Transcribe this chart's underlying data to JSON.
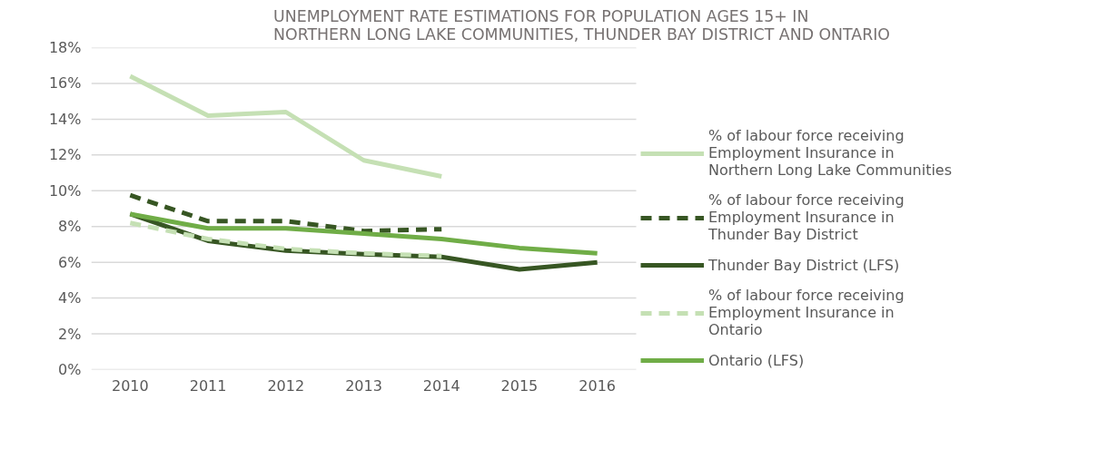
{
  "chart_data": {
    "type": "line",
    "title": "UNEMPLOYMENT RATE ESTIMATIONS FOR POPULATION AGES 15+ IN\nNORTHERN LONG LAKE COMMUNITIES, THUNDER BAY DISTRICT AND ONTARIO",
    "categories": [
      "2010",
      "2011",
      "2012",
      "2013",
      "2014",
      "2015",
      "2016"
    ],
    "series": [
      {
        "name": "% of labour force receiving Employment Insurance in Northern Long Lake Communities",
        "color": "#c5e0b4",
        "line_style": "solid",
        "values": [
          16.4,
          14.2,
          14.4,
          11.7,
          10.8,
          null,
          null
        ]
      },
      {
        "name": "% of labour force receiving Employment Insurance in Thunder Bay District",
        "color": "#375623",
        "line_style": "dashed",
        "values": [
          9.75,
          8.3,
          8.3,
          7.75,
          7.85,
          null,
          null
        ]
      },
      {
        "name": "Thunder Bay District (LFS)",
        "color": "#375623",
        "line_style": "solid",
        "values": [
          8.7,
          7.2,
          6.65,
          6.45,
          6.3,
          5.6,
          6.0
        ]
      },
      {
        "name": "% of labour force receiving Employment Insurance in Ontario",
        "color": "#c5e0b4",
        "line_style": "dashed",
        "values": [
          8.2,
          7.3,
          6.75,
          6.5,
          6.35,
          null,
          null
        ]
      },
      {
        "name": "Ontario (LFS)",
        "color": "#70ad47",
        "line_style": "solid",
        "values": [
          8.7,
          7.9,
          7.9,
          7.6,
          7.3,
          6.8,
          6.5
        ]
      }
    ],
    "ylim": [
      0,
      18
    ],
    "yticks": [
      {
        "value": 0,
        "label": "0%"
      },
      {
        "value": 2,
        "label": "2%"
      },
      {
        "value": 4,
        "label": "4%"
      },
      {
        "value": 6,
        "label": "6%"
      },
      {
        "value": 8,
        "label": "8%"
      },
      {
        "value": 10,
        "label": "10%"
      },
      {
        "value": 12,
        "label": "12%"
      },
      {
        "value": 14,
        "label": "14%"
      },
      {
        "value": 16,
        "label": "16%"
      },
      {
        "value": 18,
        "label": "18%"
      }
    ],
    "grid": "y",
    "legend": "right",
    "marker": "none"
  }
}
